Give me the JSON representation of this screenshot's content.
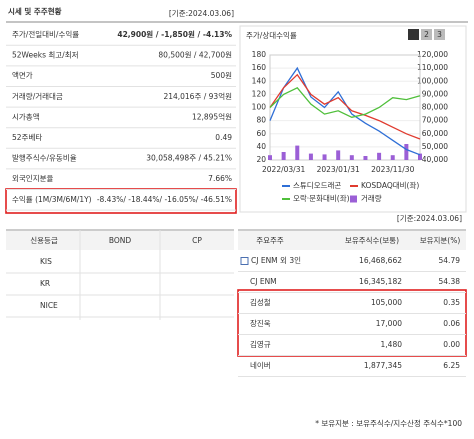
{
  "header": {
    "title": "시세 및 주주현황",
    "basis": "[기준:2024.03.06]"
  },
  "quote_table": {
    "rows": [
      [
        "주가/전일대비/수익률",
        "42,900원 / -1,850원 / -4.13%"
      ],
      [
        "52Weeks 최고/최저",
        "80,500원 / 42,700원"
      ],
      [
        "액면가",
        "500원"
      ],
      [
        "거래량/거래대금",
        "214,016주 / 93억원"
      ],
      [
        "시가총액",
        "12,895억원"
      ],
      [
        "52주베타",
        "0.49"
      ],
      [
        "발행주식수/유동비율",
        "30,058,498주 / 45.21%"
      ],
      [
        "외국인지분율",
        "7.66%"
      ],
      [
        "수익률 (1M/3M/6M/1Y)",
        "-8.43%/ -18.44%/ -16.05%/ -46.51%"
      ]
    ]
  },
  "price_chart": {
    "type": "line",
    "title": "주가/상대수익률",
    "tabs": [
      "1",
      "2",
      "3"
    ],
    "categories": [
      null,
      "2022/03/31",
      null,
      null,
      null,
      "2023/01/31",
      null,
      null,
      null,
      "2023/11/30",
      null,
      null
    ],
    "ylim": [
      20,
      180
    ],
    "yticks": [
      20,
      40,
      60,
      80,
      100,
      120,
      140,
      160,
      180
    ],
    "y2lim": [
      40000,
      120000
    ],
    "y2ticks": [
      {
        "value": 40000,
        "label": "40,000"
      },
      {
        "value": 50000,
        "label": "50,000"
      },
      {
        "value": 60000,
        "label": "60,000"
      },
      {
        "value": 70000,
        "label": "70,000"
      },
      {
        "value": 80000,
        "label": "80,000"
      },
      {
        "value": 90000,
        "label": "90,000"
      },
      {
        "value": 100000,
        "label": "100,000"
      },
      {
        "value": 110000,
        "label": "110,000"
      },
      {
        "value": 120000,
        "label": "120,000"
      }
    ],
    "series": [
      {
        "name": "스튜디오드래곤",
        "color": "#2f6fd6",
        "axis": "y2",
        "values": [
          70000,
          95000,
          110000,
          88000,
          80000,
          92000,
          75000,
          68000,
          62000,
          55000,
          48000,
          44000
        ]
      },
      {
        "name": "KOSDAQ대비(좌)",
        "color": "#e03b2f",
        "values": [
          100,
          130,
          150,
          120,
          105,
          115,
          95,
          88,
          80,
          70,
          60,
          52
        ]
      },
      {
        "name": "오락·문화대비(좌)",
        "color": "#4fbf3a",
        "values": [
          100,
          120,
          130,
          105,
          90,
          95,
          85,
          90,
          100,
          115,
          112,
          118
        ]
      }
    ],
    "volume": {
      "name": "거래량",
      "color": "#9b5fd6",
      "values": [
        300000,
        500000,
        900000,
        400000,
        350000,
        600000,
        300000,
        250000,
        450000,
        300000,
        1000000,
        400000
      ]
    }
  },
  "credit_table": {
    "header": [
      "신용등급",
      "BOND",
      "CP"
    ],
    "rows": [
      [
        "KIS"
      ],
      [
        "KR"
      ],
      [
        "NICE"
      ]
    ]
  },
  "shareholders": {
    "basis": "[기준:2024.03.06]",
    "header": [
      "주요주주",
      "보유주식수(보통)",
      "보유지분(%)"
    ],
    "rows": [
      [
        "CJ ENM 외 3인",
        "16,468,662",
        "54.79"
      ],
      [
        "CJ ENM",
        "16,345,182",
        "54.38"
      ],
      [
        "김성철",
        "105,000",
        "0.35"
      ],
      [
        "장진욱",
        "17,000",
        "0.06"
      ],
      [
        "김영규",
        "1,480",
        "0.00"
      ],
      [
        "네이버",
        "1,877,345",
        "6.25"
      ]
    ],
    "footnote": "* 보유지분 : 보유주식수/지수산정 주식수*100"
  }
}
